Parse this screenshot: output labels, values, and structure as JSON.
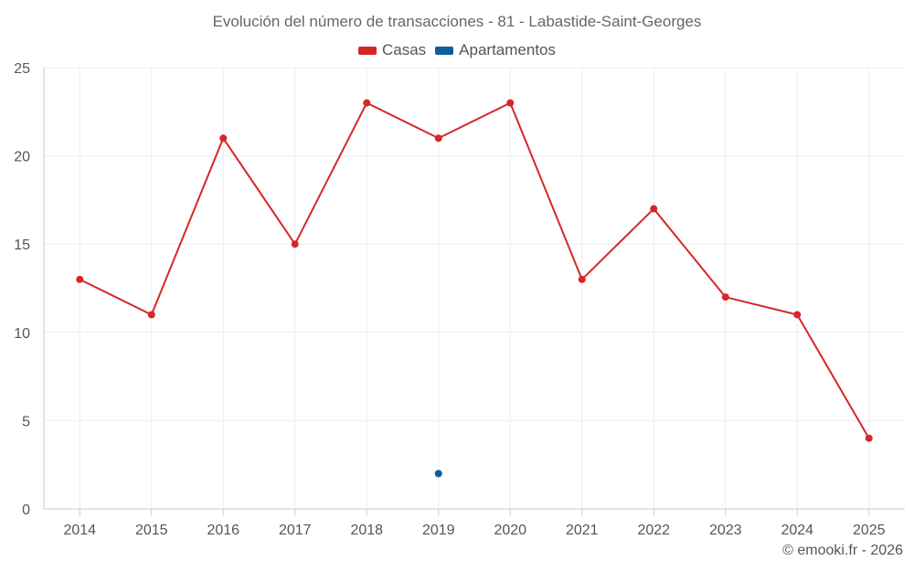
{
  "title": "Evolución del número de transacciones - 81 - Labastide-Saint-Georges",
  "credit": "© emooki.fr - 2026",
  "chart_data": {
    "type": "line",
    "title": "Evolución del número de transacciones - 81 - Labastide-Saint-Georges",
    "x": [
      "2014",
      "2015",
      "2016",
      "2017",
      "2018",
      "2019",
      "2020",
      "2021",
      "2022",
      "2023",
      "2024",
      "2025"
    ],
    "ylim": [
      0,
      25
    ],
    "yticks": [
      "0",
      "5",
      "10",
      "15",
      "20",
      "25"
    ],
    "grid": true,
    "legend_position": "top",
    "series": [
      {
        "name": "Casas",
        "color": "#d62728",
        "values": [
          13,
          11,
          21,
          15,
          23,
          21,
          23,
          13,
          17,
          12,
          11,
          4
        ]
      },
      {
        "name": "Apartamentos",
        "color": "#0b5f9b",
        "values": [
          null,
          null,
          null,
          null,
          null,
          2,
          null,
          null,
          null,
          null,
          null,
          null
        ]
      }
    ]
  }
}
